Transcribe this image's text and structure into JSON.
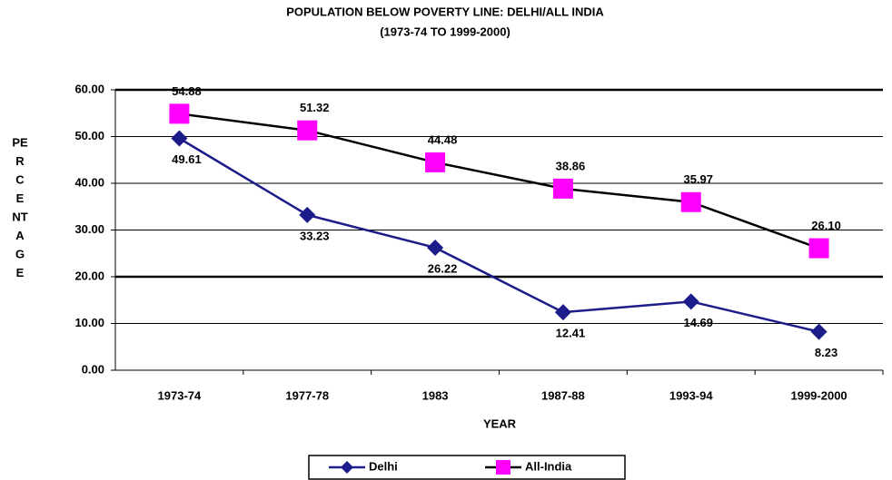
{
  "chart_data": {
    "type": "line",
    "title": "POPULATION BELOW POVERTY LINE: DELHI/ALL INDIA",
    "subtitle": "(1973-74 TO 1999-2000)",
    "xlabel": "YEAR",
    "ylabel_lines": [
      "PE",
      "R",
      "C",
      "E",
      "NT",
      "A",
      "G",
      "E"
    ],
    "categories": [
      "1973-74",
      "1977-78",
      "1983",
      "1987-88",
      "1993-94",
      "1999-2000"
    ],
    "series": [
      {
        "name": "Delhi",
        "color": "#1c1c8a",
        "marker": "diamond",
        "values": [
          49.61,
          33.23,
          26.22,
          12.41,
          14.69,
          8.23
        ],
        "value_labels": [
          "49.61",
          "33.23",
          "26.22",
          "12.41",
          "14.69",
          "8.23"
        ]
      },
      {
        "name": "All-India",
        "color": "#000000",
        "marker_color": "#ff00ff",
        "marker": "square",
        "values": [
          54.88,
          51.32,
          44.48,
          38.86,
          35.97,
          26.1
        ],
        "value_labels": [
          "54.88",
          "51.32",
          "44.48",
          "38.86",
          "35.97",
          "26.10"
        ]
      }
    ],
    "ylim": [
      0,
      60
    ],
    "yticks": [
      {
        "value": 0,
        "label": "0.00"
      },
      {
        "value": 10,
        "label": "10.00"
      },
      {
        "value": 20,
        "label": "20.00"
      },
      {
        "value": 30,
        "label": "30.00"
      },
      {
        "value": 40,
        "label": "40.00"
      },
      {
        "value": 50,
        "label": "50.00"
      },
      {
        "value": 60,
        "label": "60.00"
      }
    ],
    "grid": true,
    "legend": "bottom"
  }
}
